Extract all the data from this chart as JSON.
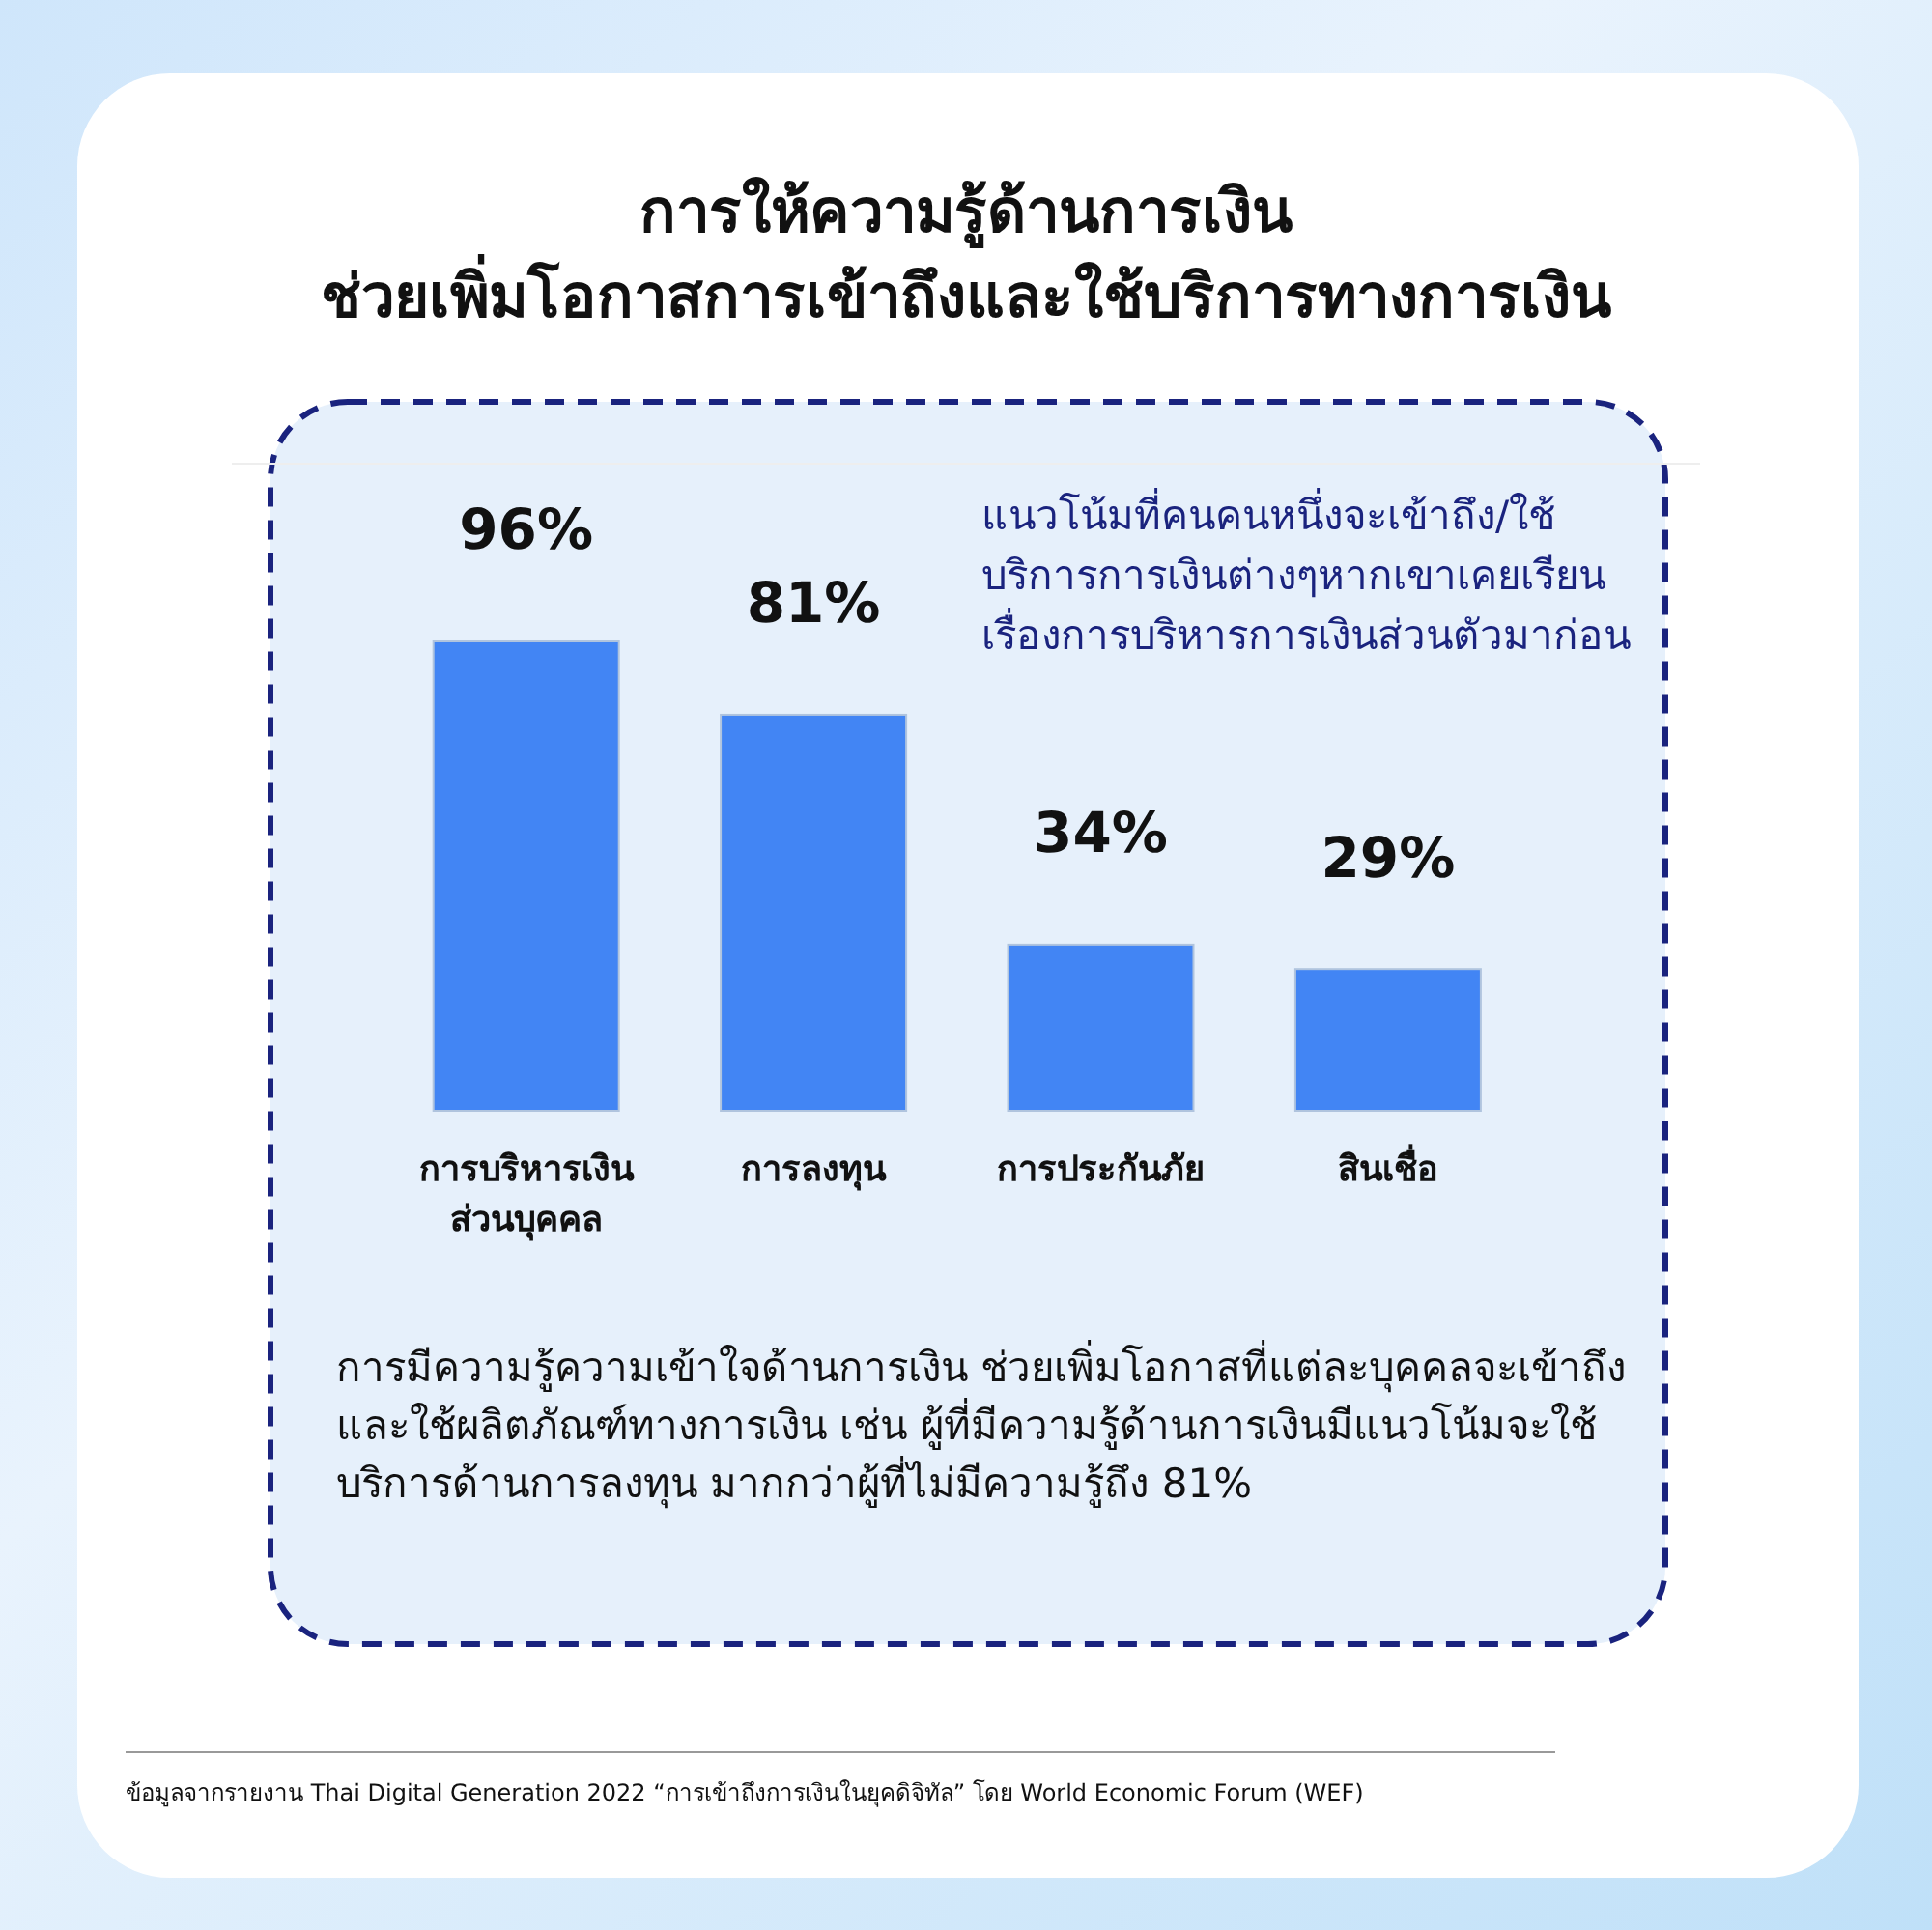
{
  "chart_data": {
    "type": "bar",
    "title": "การให้ความรู้ด้านการเงิน\nช่วยเพิ่มโอกาสการเข้าถึงและใช้บริการทางการเงิน",
    "categories": [
      "การบริหารเงินส่วนบุคคล",
      "การลงทุน",
      "การประกันภัย",
      "สินเชื่อ"
    ],
    "values": [
      96,
      81,
      34,
      29
    ],
    "value_labels": [
      "96%",
      "81%",
      "34%",
      "29%"
    ],
    "color": "#4285f4",
    "annotations": [
      "แนวโน้มที่คนคนหนึ่งจะเข้าถึง/ใช้บริการการเงินต่างๆหากเขาเคยเรียนเรื่องการบริหารการเงินส่วนตัวมาก่อน",
      "การมีความรู้ความเข้าใจด้านการเงิน ช่วยเพิ่มโอกาสที่แต่ละบุคคลจะเข้าถึงและใช้ผลิตภัณฑ์ทางการเงิน เช่น ผู้ที่มีความรู้ด้านการเงินมีแนวโน้มจะใช้บริการด้านการลงทุน มากกว่าผู้ที่ไม่มีความรู้ถึง 81%",
      "ข้อมูลจากรายงาน Thai Digital Generation 2022 “การเข้าถึงการเงินในยุคดิจิทัล” โดย World Economic Forum (WEF)"
    ]
  }
}
